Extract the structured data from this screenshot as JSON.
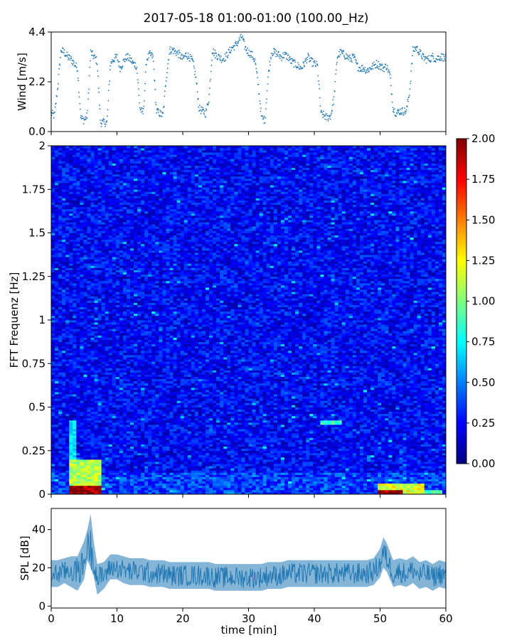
{
  "title": "2017-05-18 01:00-01:00 (100.00_Hz)",
  "chart_data": [
    {
      "type": "scatter",
      "panel": "wind",
      "ylabel": "Wind [m/s]",
      "xlabel": "",
      "xlim": [
        0,
        60
      ],
      "ylim": [
        0,
        4.4
      ],
      "yticks": [
        "0.0",
        "2.2",
        "4.4"
      ],
      "series": [
        {
          "color": "#1f77b4",
          "x": [
            0,
            0.5,
            1,
            1.5,
            2,
            2.5,
            3,
            3.5,
            4,
            4.5,
            5,
            5.5,
            6,
            6.5,
            7,
            7.5,
            8,
            8.5,
            9,
            9.5,
            10,
            10.5,
            11,
            11.5,
            12,
            12.5,
            13,
            13.5,
            14,
            14.5,
            15,
            15.5,
            16,
            16.5,
            17,
            17.5,
            18,
            18.5,
            19,
            19.5,
            20,
            20.5,
            21,
            21.5,
            22,
            22.5,
            23,
            23.5,
            24,
            24.5,
            25,
            25.5,
            26,
            26.5,
            27,
            27.5,
            28,
            28.5,
            29,
            29.5,
            30,
            30.5,
            31,
            31.5,
            32,
            32.5,
            33,
            33.5,
            34,
            34.5,
            35,
            35.5,
            36,
            36.5,
            37,
            37.5,
            38,
            38.5,
            39,
            39.5,
            40,
            40.5,
            41,
            41.5,
            42,
            42.5,
            43,
            43.5,
            44,
            44.5,
            45,
            45.5,
            46,
            46.5,
            47,
            47.5,
            48,
            48.5,
            49,
            49.5,
            50,
            50.5,
            51,
            51.5,
            52,
            52.5,
            53,
            53.5,
            54,
            54.5,
            55,
            55.5,
            56,
            56.5,
            57,
            57.5,
            58,
            58.5,
            59,
            59.5,
            60
          ],
          "y": [
            0.8,
            0.7,
            2.0,
            3.6,
            3.5,
            3.3,
            3.2,
            3.0,
            2.8,
            0.6,
            0.5,
            0.7,
            3.5,
            3.3,
            3.1,
            0.4,
            0.4,
            0.4,
            3.0,
            3.2,
            3.3,
            2.8,
            3.1,
            3.3,
            3.2,
            3.0,
            2.9,
            1.0,
            0.8,
            3.2,
            3.4,
            3.3,
            0.9,
            0.8,
            0.7,
            2.4,
            3.6,
            3.6,
            3.5,
            3.4,
            3.2,
            3.4,
            3.3,
            3.1,
            2.4,
            1.0,
            0.9,
            0.8,
            1.5,
            3.6,
            3.4,
            3.3,
            3.2,
            3.3,
            3.5,
            3.7,
            3.8,
            4.0,
            4.2,
            3.7,
            3.5,
            3.4,
            3.1,
            2.0,
            0.6,
            0.5,
            2.5,
            3.5,
            3.5,
            3.4,
            3.3,
            3.4,
            3.3,
            3.1,
            3.0,
            2.9,
            2.8,
            3.0,
            3.3,
            3.1,
            3.0,
            2.9,
            0.8,
            0.7,
            0.6,
            0.7,
            1.5,
            3.3,
            3.5,
            3.4,
            3.3,
            3.2,
            3.3,
            2.9,
            2.8,
            2.8,
            2.7,
            2.8,
            2.9,
            3.0,
            2.9,
            2.8,
            2.9,
            2.5,
            1.0,
            0.8,
            0.9,
            0.9,
            0.9,
            1.8,
            3.6,
            3.7,
            3.5,
            3.3,
            3.2,
            3.2,
            3.3,
            3.2,
            3.3,
            3.3,
            3.2
          ]
        }
      ]
    },
    {
      "type": "heatmap",
      "panel": "spectrogram",
      "ylabel": "FFT Frequenz [Hz]",
      "xlabel": "",
      "xlim": [
        0,
        60
      ],
      "ylim": [
        0,
        2
      ],
      "yticks": [
        "0",
        "0.25",
        "0.5",
        "0.75",
        "1",
        "1.25",
        "1.5",
        "1.75",
        "2"
      ],
      "colorbar": {
        "colormap": "jet",
        "range": [
          0,
          2
        ],
        "ticks": [
          "0.00",
          "0.25",
          "0.50",
          "0.75",
          "1.00",
          "1.25",
          "1.50",
          "1.75",
          "2.00"
        ]
      },
      "base_level": 0.25,
      "hotspots": [
        {
          "t": [
            3.0,
            7.5
          ],
          "f": [
            0,
            0.2
          ],
          "level": 1.1
        },
        {
          "t": [
            3.0,
            7.5
          ],
          "f": [
            0,
            0.05
          ],
          "level": 2.0
        },
        {
          "t": [
            3.0,
            4.0
          ],
          "f": [
            0.2,
            0.42
          ],
          "level": 0.7
        },
        {
          "t": [
            49.5,
            56.5
          ],
          "f": [
            0,
            0.06
          ],
          "level": 1.2
        },
        {
          "t": [
            49.5,
            53.5
          ],
          "f": [
            0,
            0.02
          ],
          "level": 2.0
        },
        {
          "t": [
            55.5,
            59.5
          ],
          "f": [
            0,
            0.03
          ],
          "level": 0.9
        },
        {
          "t": [
            41.0,
            44.0
          ],
          "f": [
            0.4,
            0.43
          ],
          "level": 0.85
        }
      ]
    },
    {
      "type": "area",
      "panel": "spl",
      "ylabel": "SPL [dB]",
      "xlabel": "time [min]",
      "xlim": [
        0,
        60
      ],
      "ylim": [
        -1,
        51
      ],
      "yticks": [
        "0",
        "20",
        "40"
      ],
      "xticks": [
        "0",
        "10",
        "20",
        "30",
        "40",
        "50",
        "60"
      ],
      "series": [
        {
          "color": "#1f77b4",
          "x": [
            0,
            1,
            2,
            3,
            4,
            5,
            5.5,
            6,
            6.5,
            7,
            8,
            9,
            10,
            11,
            12,
            13,
            14,
            15,
            16,
            17,
            18,
            19,
            20,
            21,
            22,
            23,
            24,
            25,
            26,
            27,
            28,
            29,
            30,
            31,
            32,
            33,
            34,
            35,
            36,
            37,
            38,
            39,
            40,
            41,
            42,
            43,
            44,
            45,
            46,
            47,
            48,
            49,
            50,
            50.5,
            51,
            52,
            53,
            54,
            55,
            56,
            57,
            58,
            59,
            60
          ],
          "mean": [
            17,
            17,
            18,
            19,
            18,
            22,
            32,
            30,
            24,
            14,
            16,
            20,
            20,
            19,
            18,
            18,
            18,
            17,
            17,
            17,
            16,
            16,
            16,
            16,
            16,
            16,
            16,
            15,
            15,
            15,
            15,
            15,
            15,
            15,
            15,
            16,
            16,
            16,
            17,
            17,
            17,
            17,
            17,
            17,
            17,
            17,
            17,
            17,
            17,
            17,
            17,
            18,
            22,
            28,
            25,
            17,
            18,
            17,
            19,
            16,
            17,
            15,
            17,
            16
          ],
          "min": [
            10,
            10,
            12,
            10,
            8,
            14,
            24,
            20,
            15,
            6,
            9,
            14,
            14,
            12,
            11,
            11,
            11,
            10,
            10,
            10,
            9,
            9,
            9,
            9,
            9,
            9,
            9,
            8,
            8,
            8,
            8,
            8,
            8,
            8,
            8,
            9,
            9,
            9,
            10,
            10,
            10,
            10,
            10,
            10,
            10,
            10,
            10,
            10,
            10,
            10,
            10,
            11,
            15,
            20,
            18,
            10,
            11,
            10,
            12,
            9,
            10,
            8,
            10,
            9
          ],
          "max": [
            24,
            24,
            25,
            26,
            26,
            34,
            40,
            48,
            33,
            22,
            23,
            27,
            27,
            26,
            25,
            25,
            25,
            24,
            24,
            24,
            23,
            23,
            23,
            23,
            23,
            23,
            23,
            22,
            22,
            22,
            22,
            22,
            22,
            22,
            22,
            23,
            23,
            23,
            24,
            24,
            24,
            24,
            24,
            24,
            24,
            24,
            24,
            24,
            24,
            24,
            24,
            25,
            30,
            36,
            33,
            24,
            25,
            24,
            26,
            23,
            24,
            22,
            24,
            23
          ]
        }
      ]
    }
  ]
}
